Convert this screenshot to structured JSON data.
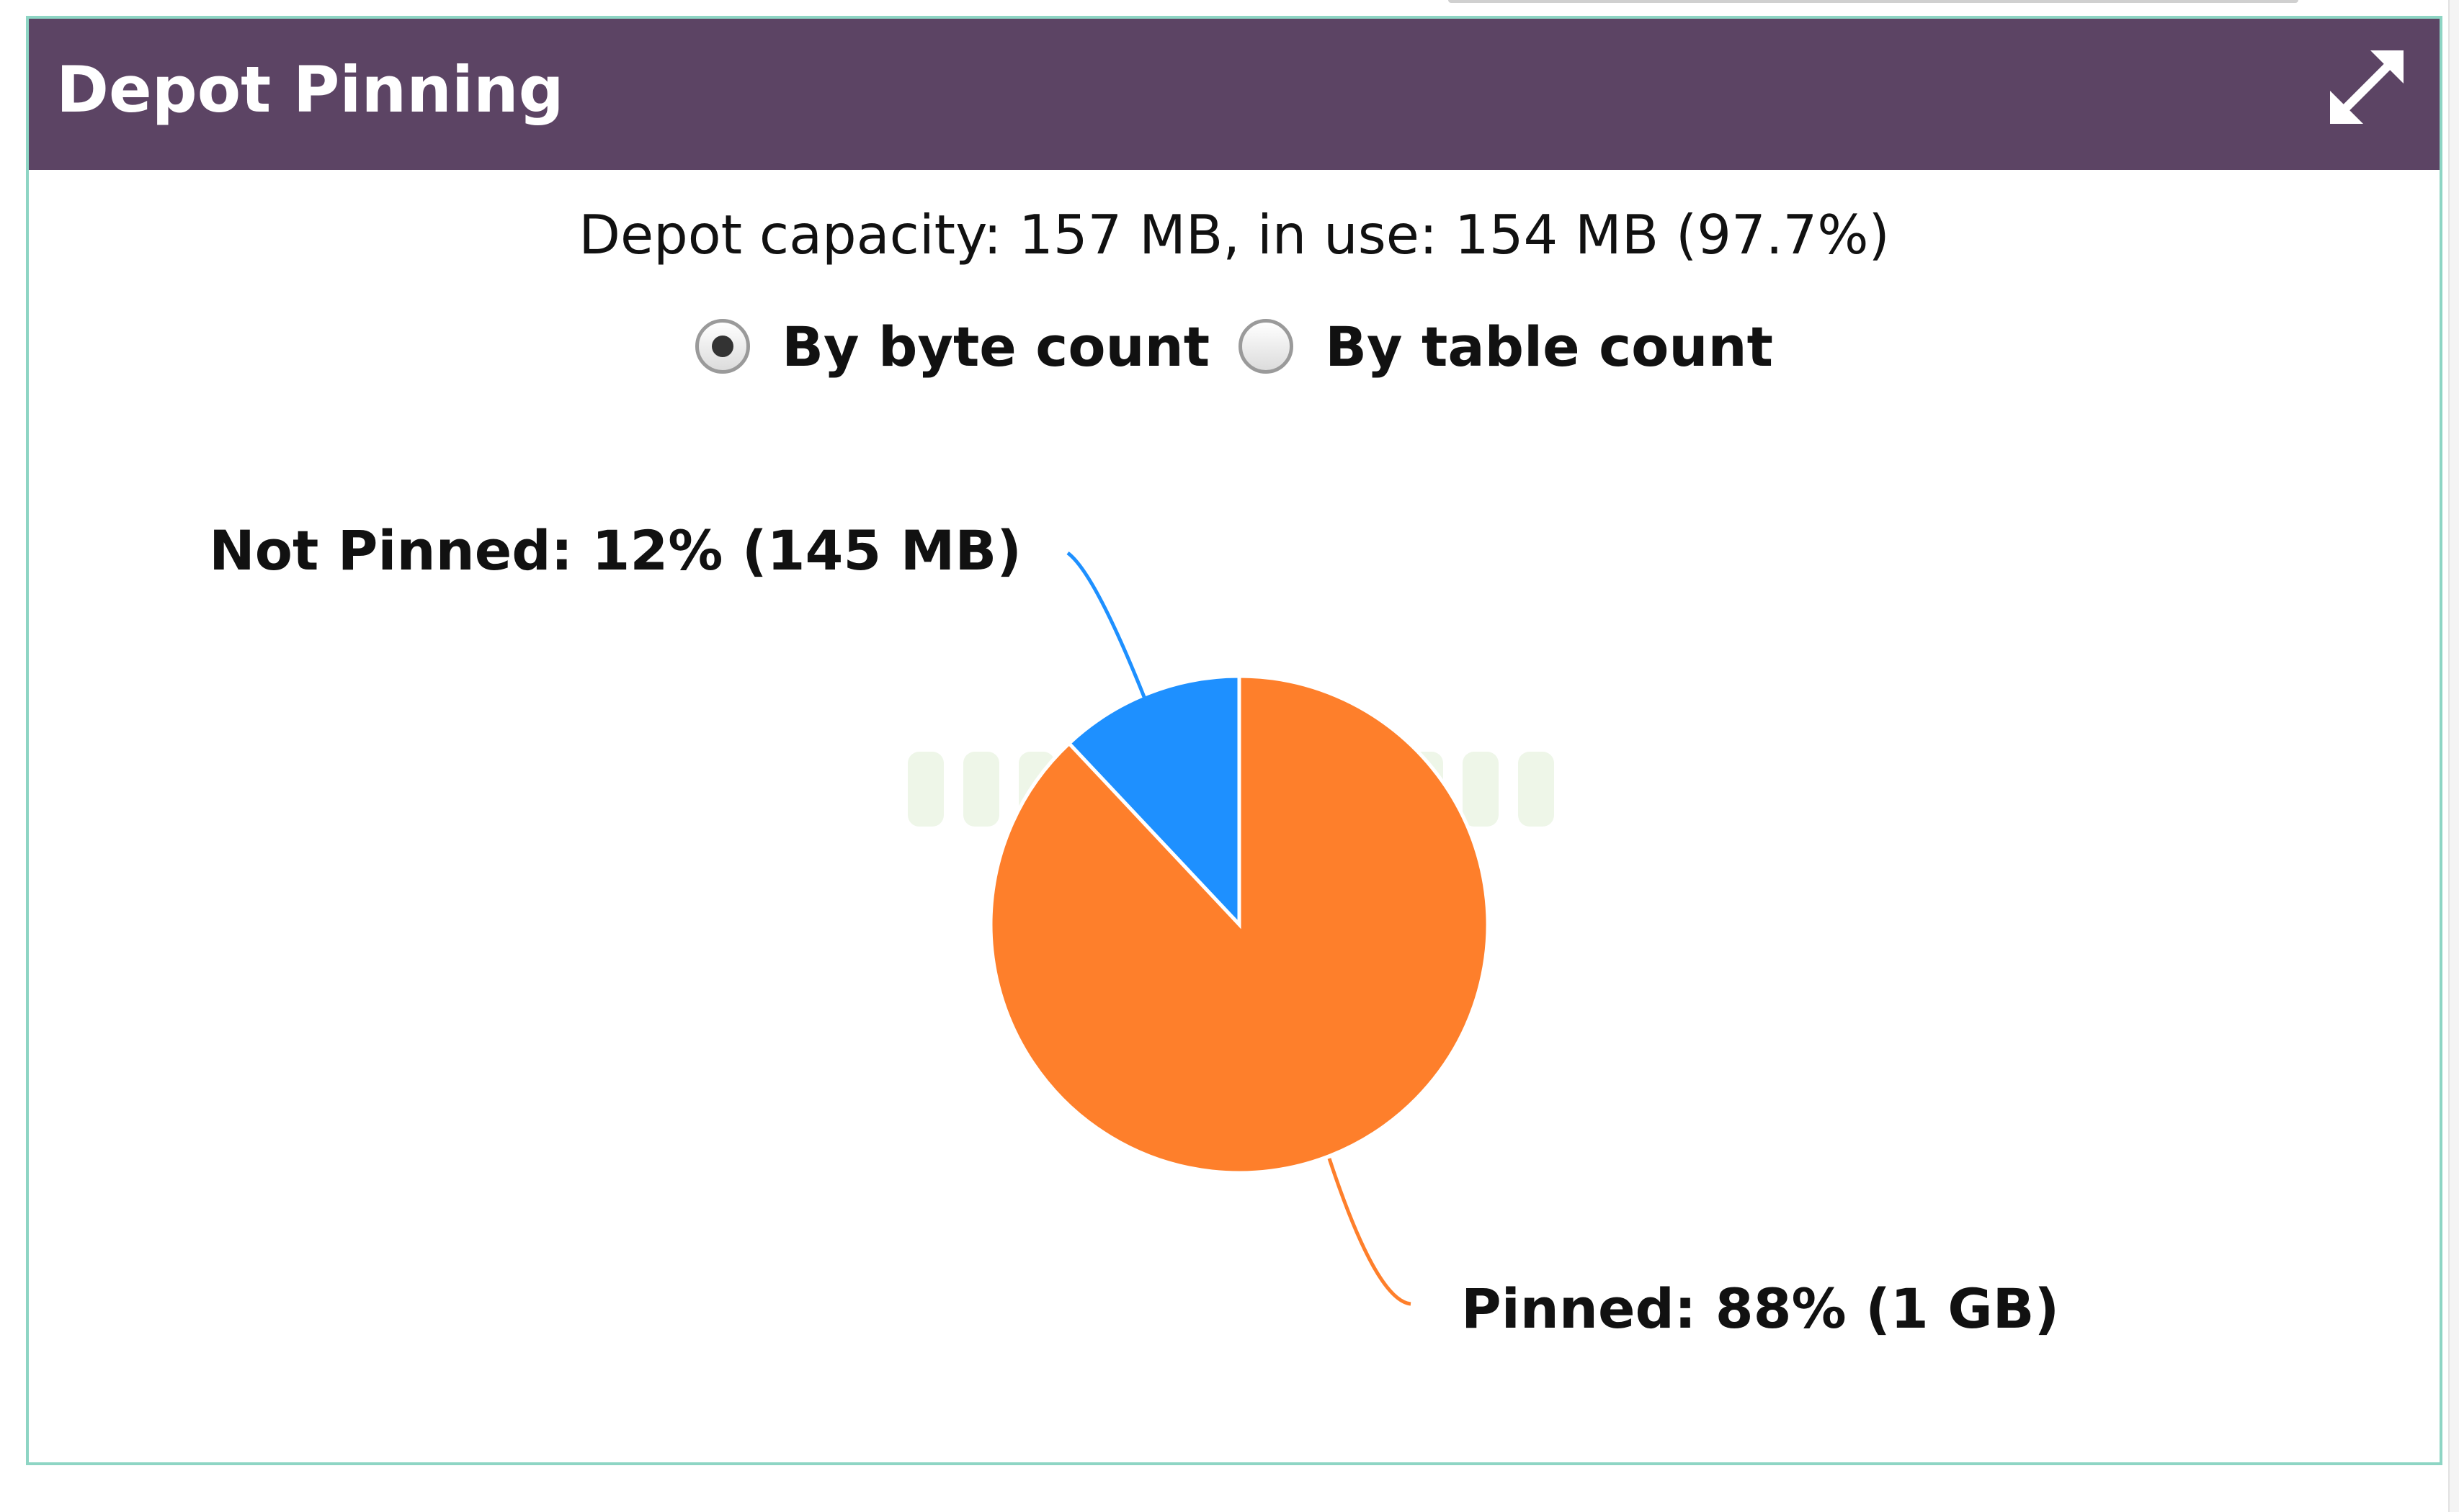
{
  "panel": {
    "title": "Depot Pinning",
    "expand_icon": "expand-arrows-icon"
  },
  "summary": {
    "text": "Depot capacity: 157 MB, in use: 154 MB (97.7%)"
  },
  "view_options": [
    {
      "label": "By byte count",
      "selected": true
    },
    {
      "label": "By table count",
      "selected": false
    }
  ],
  "colors": {
    "header": "#5c4464",
    "pinned": "#fe7f2b",
    "not_pinned": "#1e90ff",
    "panel_border": "#8ed5c4"
  },
  "chart_data": {
    "type": "pie",
    "slices": [
      {
        "name": "Not Pinned",
        "percent": 12,
        "size": "145 MB",
        "label": "Not Pinned: 12% (145 MB)",
        "color": "#1e90ff"
      },
      {
        "name": "Pinned",
        "percent": 88,
        "size": "1 GB",
        "label": "Pinned: 88% (1 GB)",
        "color": "#fe7f2b"
      }
    ]
  }
}
